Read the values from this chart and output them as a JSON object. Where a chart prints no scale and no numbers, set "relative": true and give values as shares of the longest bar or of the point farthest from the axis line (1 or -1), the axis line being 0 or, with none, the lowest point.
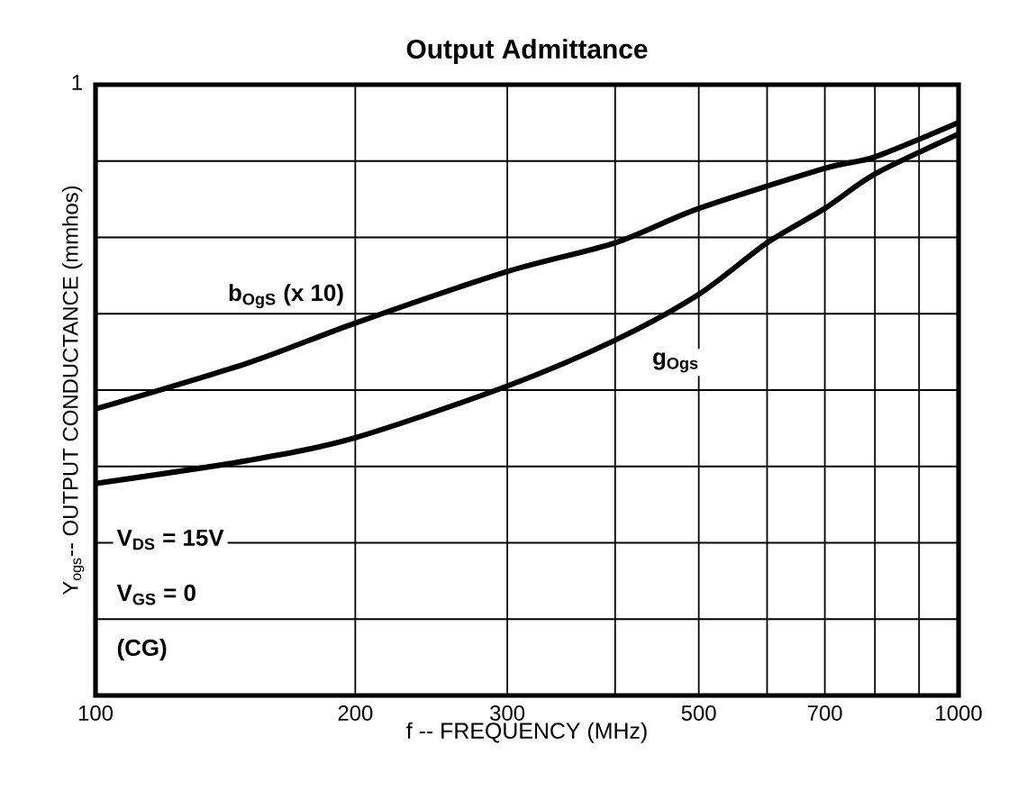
{
  "chart_data": {
    "type": "line",
    "title": "Output Admittance",
    "xlabel": "f  -- FREQUENCY (MHz)",
    "ylabel": "Y$_{ogs}$-- OUTPUT CONDUCTANCE  (mmhos)",
    "log": "x",
    "grid": true,
    "legend": false,
    "marker": "none",
    "line_style": "solid",
    "relative": true,
    "xlim": [
      100,
      1000
    ],
    "xticks": [
      100,
      200,
      300,
      {
        "value": 400,
        "label": null
      },
      500,
      {
        "value": 600,
        "label": null
      },
      700,
      {
        "value": 800,
        "label": null
      },
      {
        "value": 900,
        "label": null
      },
      1000
    ],
    "series": [
      {
        "name": "b$_{OgS}$  (x 10)",
        "color": "#000000",
        "x": [
          100,
          150,
          200,
          300,
          400,
          500,
          700,
          800,
          1000
        ],
        "values": [
          0.5,
          0.58,
          0.65,
          0.74,
          0.79,
          0.85,
          0.92,
          0.94,
          1
        ]
      },
      {
        "name": "g$_{Ogs}$",
        "color": "#000000",
        "x": [
          100,
          150,
          200,
          300,
          400,
          500,
          600,
          700,
          800,
          1000
        ],
        "values": [
          0.37,
          0.41,
          0.45,
          0.54,
          0.62,
          0.7,
          0.79,
          0.85,
          0.91,
          0.98
        ]
      }
    ],
    "annotations": [
      "V$_{DS}$  = 15V",
      "V$_{GS}$  = 0",
      "(CG)",
      "1"
    ]
  }
}
